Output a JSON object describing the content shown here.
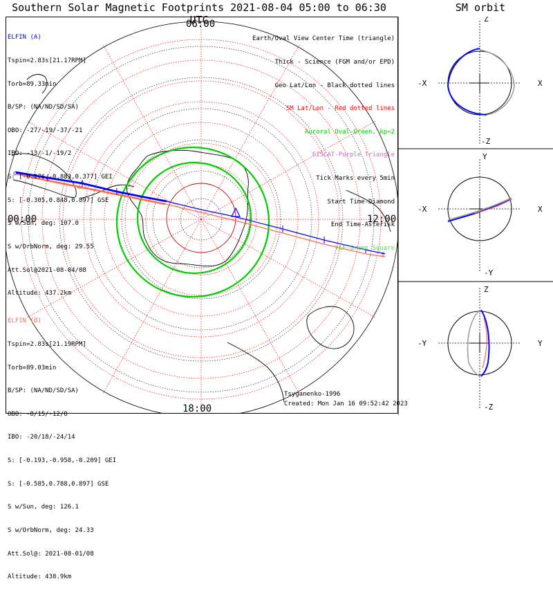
{
  "title": "Southern Solar Magnetic Footprints 2021-08-04 05:00 to 06:30 UTC",
  "orbit_title": "SM orbit",
  "clock_labels": {
    "top": "06:00",
    "left": "00:00",
    "right": "12:00",
    "bottom": "18:00"
  },
  "elfin_a": {
    "name": "ELFIN (A)",
    "lines": [
      "Tspin=2.83s[21.17RPM]",
      "Torb=89.33min",
      "B/SP: (NA/ND/SD/SA)",
      "OBO: -27/-19/-37/-21",
      "IBO: -13/-1/-19/2",
      "S: [-0.276,-0.883,0.377] GEI",
      "S: [-0.305,0.848,0.897] GSE",
      "S w/Sun, deg: 107.0",
      "S w/OrbNorm, deg: 29.55",
      "Att.Sol@2021-08-04/08",
      "Altitude: 437.2km"
    ]
  },
  "elfin_b": {
    "name": "ELFIN (B)",
    "lines": [
      "Tspin=2.83s[21.19RPM]",
      "Torb=89.03min",
      "B/SP: (NA/ND/SD/SA)",
      "OBO: -8/15/-12/8",
      "IBO: -20/18/-24/14",
      "S: [-0.193,-0.958,-0.209] GEI",
      "S: [-0.585,0.788,0.897] GSE",
      "S w/Sun, deg: 126.1",
      "S w/OrbNorm, deg: 24.33",
      "Att.Sol@: 2021-08-01/08",
      "Altitude: 438.9km"
    ]
  },
  "legend": [
    {
      "text": "Earth/Oval View Center Time (triangle)",
      "color": "#000000"
    },
    {
      "text": "Thick - Science (FGM and/or EPD)",
      "color": "#000000"
    },
    {
      "text": "Geo Lat/Lon - Black dotted lines",
      "color": "#000000"
    },
    {
      "text": "SM Lat/Lon - Red dotted lines",
      "color": "#ff0000"
    },
    {
      "text": "Auroral Oval-Green, kp=2",
      "color": "#00cc00"
    },
    {
      "text": "EISCAT-Purple Triangle",
      "color": "#cc66cc"
    },
    {
      "text": "Tick Marks every 5min",
      "color": "#000000"
    },
    {
      "text": "Start Time-Diamond",
      "color": "#000000"
    },
    {
      "text": "End Time-Asterisk",
      "color": "#000000"
    },
    {
      "text": "VLF-Green Square",
      "color": "#66cc66"
    }
  ],
  "footer": {
    "author": "Tsyganenko-1996",
    "created": "Created: Mon Jan 16 09:52:42 2023"
  },
  "orbit_axes": {
    "panel1": {
      "top": "Z",
      "bottom": "-Z",
      "left": "-X",
      "right": "X"
    },
    "panel2": {
      "top": "Y",
      "bottom": "-Y",
      "left": "-X",
      "right": "X"
    },
    "panel3": {
      "top": "Z",
      "bottom": "-Z",
      "left": "-Y",
      "right": "Y"
    }
  },
  "colors": {
    "elfin_a": "#0000ff",
    "elfin_b": "#ff6a50",
    "oval": "#00cc00",
    "sm_grid": "#ff0000",
    "coast": "#000000"
  }
}
